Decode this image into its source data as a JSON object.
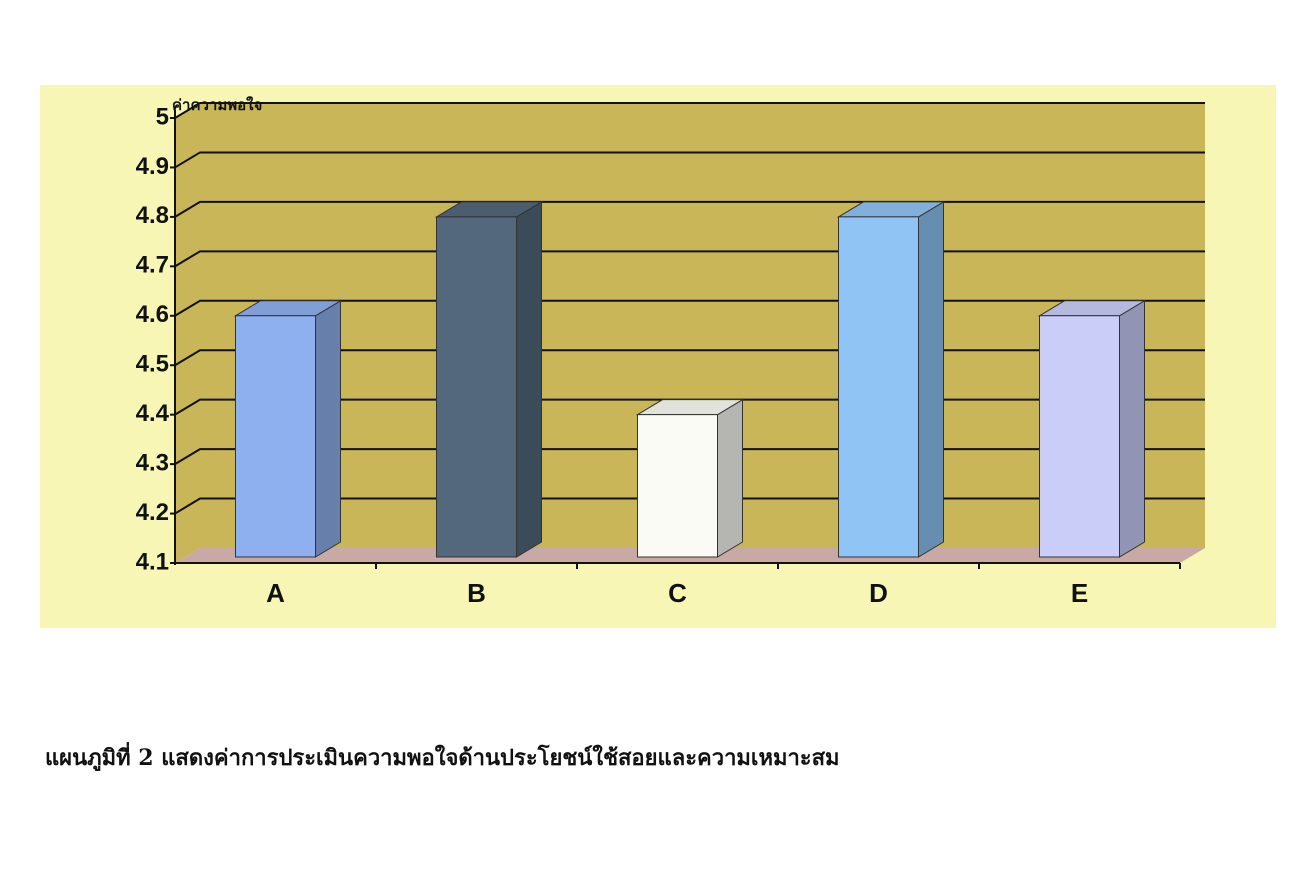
{
  "chart_data": {
    "type": "bar3d",
    "y_label": "ค่าความพอใจ",
    "caption": "แผนภูมิที่ 2 แสดงค่าการประเมินความพอใจด้านประโยชน์ใช้สอยและความเหมาะสม",
    "categories": [
      "A",
      "B",
      "C",
      "D",
      "E"
    ],
    "values": [
      4.6,
      4.8,
      4.4,
      4.8,
      4.6
    ],
    "colors": [
      "#8fb0ee",
      "#53687c",
      "#fbfbf6",
      "#8fc4f4",
      "#c9cdf7"
    ],
    "ylim": [
      4.1,
      5
    ],
    "yticks": [
      4.1,
      4.2,
      4.3,
      4.4,
      4.5,
      4.6,
      4.7,
      4.8,
      4.9,
      5
    ],
    "grid": true
  }
}
